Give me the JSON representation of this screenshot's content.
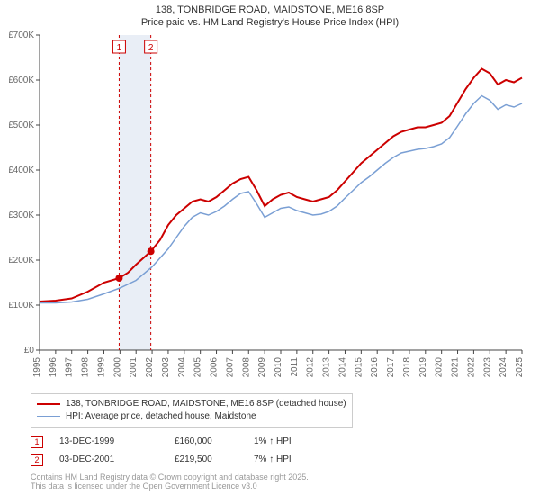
{
  "title_line1": "138, TONBRIDGE ROAD, MAIDSTONE, ME16 8SP",
  "title_line2": "Price paid vs. HM Land Registry's House Price Index (HPI)",
  "chart": {
    "type": "line",
    "background_color": "#ffffff",
    "plot_border_color": "#444444",
    "grid": false,
    "x_axis": {
      "min": 1995,
      "max": 2025,
      "tick_step": 1,
      "labels": [
        "1995",
        "1996",
        "1997",
        "1998",
        "1999",
        "2000",
        "2001",
        "2002",
        "2003",
        "2004",
        "2005",
        "2006",
        "2007",
        "2008",
        "2009",
        "2010",
        "2011",
        "2012",
        "2013",
        "2014",
        "2015",
        "2016",
        "2017",
        "2018",
        "2019",
        "2020",
        "2021",
        "2022",
        "2023",
        "2024",
        "2025"
      ],
      "label_rotation": -90,
      "label_fontsize": 10,
      "label_color": "#666666"
    },
    "y_axis": {
      "min": 0,
      "max": 700000,
      "tick_step": 100000,
      "labels": [
        "£0",
        "£100K",
        "£200K",
        "£300K",
        "£400K",
        "£500K",
        "£600K",
        "£700K"
      ],
      "label_fontsize": 10,
      "label_color": "#666666"
    },
    "shaded_band": {
      "x_from": 1999.95,
      "x_to": 2001.92,
      "fill": "#e9eef6"
    },
    "vmarkers": [
      {
        "x": 1999.95,
        "label": "1",
        "color": "#cc0000",
        "dash": "3,3",
        "box_color": "#cc0000"
      },
      {
        "x": 2001.92,
        "label": "2",
        "color": "#cc0000",
        "dash": "3,3",
        "box_color": "#cc0000"
      }
    ],
    "series": [
      {
        "name": "price_paid",
        "label": "138, TONBRIDGE ROAD, MAIDSTONE, ME16 8SP (detached house)",
        "color": "#cc0000",
        "line_width": 2,
        "points": [
          [
            1995,
            108000
          ],
          [
            1996,
            110000
          ],
          [
            1997,
            115000
          ],
          [
            1998,
            130000
          ],
          [
            1999,
            150000
          ],
          [
            1999.95,
            160000
          ],
          [
            2000.5,
            172000
          ],
          [
            2001,
            190000
          ],
          [
            2001.92,
            219500
          ],
          [
            2002.5,
            245000
          ],
          [
            2003,
            278000
          ],
          [
            2003.5,
            300000
          ],
          [
            2004,
            315000
          ],
          [
            2004.5,
            330000
          ],
          [
            2005,
            335000
          ],
          [
            2005.5,
            330000
          ],
          [
            2006,
            340000
          ],
          [
            2006.5,
            355000
          ],
          [
            2007,
            370000
          ],
          [
            2007.5,
            380000
          ],
          [
            2008,
            385000
          ],
          [
            2008.5,
            355000
          ],
          [
            2009,
            320000
          ],
          [
            2009.5,
            335000
          ],
          [
            2010,
            345000
          ],
          [
            2010.5,
            350000
          ],
          [
            2011,
            340000
          ],
          [
            2011.5,
            335000
          ],
          [
            2012,
            330000
          ],
          [
            2012.5,
            335000
          ],
          [
            2013,
            340000
          ],
          [
            2013.5,
            355000
          ],
          [
            2014,
            375000
          ],
          [
            2014.5,
            395000
          ],
          [
            2015,
            415000
          ],
          [
            2015.5,
            430000
          ],
          [
            2016,
            445000
          ],
          [
            2016.5,
            460000
          ],
          [
            2017,
            475000
          ],
          [
            2017.5,
            485000
          ],
          [
            2018,
            490000
          ],
          [
            2018.5,
            495000
          ],
          [
            2019,
            495000
          ],
          [
            2019.5,
            500000
          ],
          [
            2020,
            505000
          ],
          [
            2020.5,
            520000
          ],
          [
            2021,
            550000
          ],
          [
            2021.5,
            580000
          ],
          [
            2022,
            605000
          ],
          [
            2022.5,
            625000
          ],
          [
            2023,
            615000
          ],
          [
            2023.5,
            590000
          ],
          [
            2024,
            600000
          ],
          [
            2024.5,
            595000
          ],
          [
            2025,
            605000
          ]
        ],
        "markers": [
          {
            "x": 1999.95,
            "y": 160000,
            "r": 4,
            "fill": "#cc0000"
          },
          {
            "x": 2001.92,
            "y": 219500,
            "r": 4,
            "fill": "#cc0000"
          }
        ]
      },
      {
        "name": "hpi",
        "label": "HPI: Average price, detached house, Maidstone",
        "color": "#7a9fd4",
        "line_width": 1.5,
        "points": [
          [
            1995,
            105000
          ],
          [
            1996,
            105000
          ],
          [
            1997,
            107000
          ],
          [
            1998,
            113000
          ],
          [
            1999,
            125000
          ],
          [
            2000,
            138000
          ],
          [
            2001,
            155000
          ],
          [
            2002,
            185000
          ],
          [
            2003,
            225000
          ],
          [
            2003.5,
            250000
          ],
          [
            2004,
            275000
          ],
          [
            2004.5,
            295000
          ],
          [
            2005,
            305000
          ],
          [
            2005.5,
            300000
          ],
          [
            2006,
            308000
          ],
          [
            2006.5,
            320000
          ],
          [
            2007,
            335000
          ],
          [
            2007.5,
            348000
          ],
          [
            2008,
            352000
          ],
          [
            2008.5,
            325000
          ],
          [
            2009,
            295000
          ],
          [
            2009.5,
            305000
          ],
          [
            2010,
            315000
          ],
          [
            2010.5,
            318000
          ],
          [
            2011,
            310000
          ],
          [
            2011.5,
            305000
          ],
          [
            2012,
            300000
          ],
          [
            2012.5,
            302000
          ],
          [
            2013,
            308000
          ],
          [
            2013.5,
            320000
          ],
          [
            2014,
            338000
          ],
          [
            2014.5,
            355000
          ],
          [
            2015,
            372000
          ],
          [
            2015.5,
            385000
          ],
          [
            2016,
            400000
          ],
          [
            2016.5,
            415000
          ],
          [
            2017,
            428000
          ],
          [
            2017.5,
            438000
          ],
          [
            2018,
            442000
          ],
          [
            2018.5,
            446000
          ],
          [
            2019,
            448000
          ],
          [
            2019.5,
            452000
          ],
          [
            2020,
            458000
          ],
          [
            2020.5,
            472000
          ],
          [
            2021,
            498000
          ],
          [
            2021.5,
            525000
          ],
          [
            2022,
            548000
          ],
          [
            2022.5,
            565000
          ],
          [
            2023,
            555000
          ],
          [
            2023.5,
            535000
          ],
          [
            2024,
            545000
          ],
          [
            2024.5,
            540000
          ],
          [
            2025,
            548000
          ]
        ]
      }
    ]
  },
  "legend": [
    {
      "color": "#cc0000",
      "width": 2,
      "label": "138, TONBRIDGE ROAD, MAIDSTONE, ME16 8SP (detached house)"
    },
    {
      "color": "#7a9fd4",
      "width": 1.5,
      "label": "HPI: Average price, detached house, Maidstone"
    }
  ],
  "annotations": [
    {
      "marker": "1",
      "date": "13-DEC-1999",
      "price": "£160,000",
      "pct": "1% ↑ HPI"
    },
    {
      "marker": "2",
      "date": "03-DEC-2001",
      "price": "£219,500",
      "pct": "7% ↑ HPI"
    }
  ],
  "footnote_line1": "Contains HM Land Registry data © Crown copyright and database right 2025.",
  "footnote_line2": "This data is licensed under the Open Government Licence v3.0"
}
